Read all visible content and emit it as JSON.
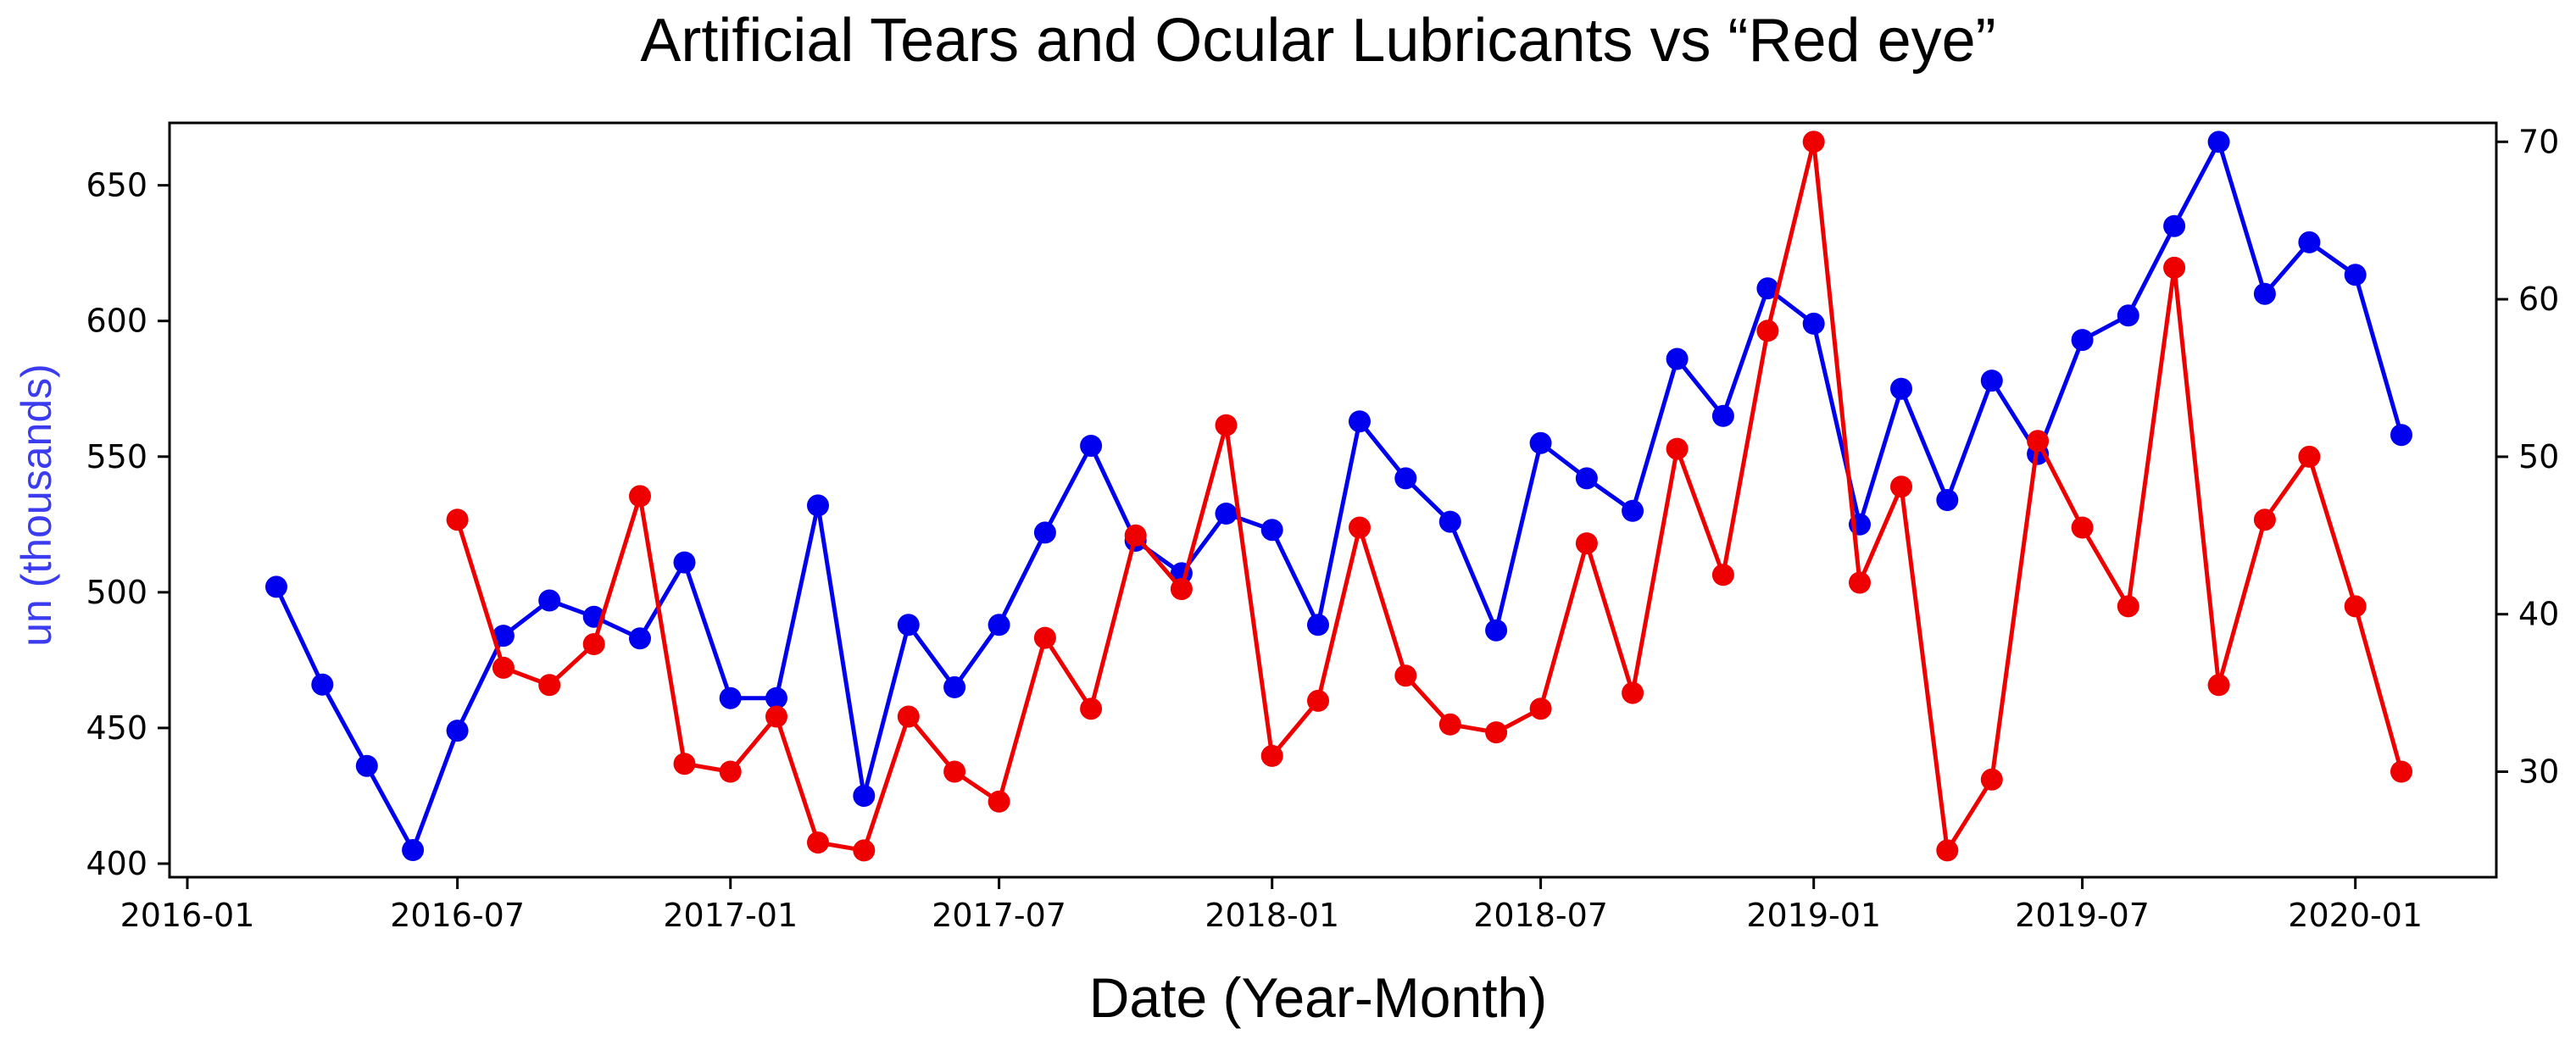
{
  "chart_data": {
    "type": "line",
    "title": "Artificial Tears and Ocular Lubricants vs “Red eye”",
    "xlabel": "Date (Year-Month)",
    "ylabel_left": "un (thousands)",
    "ylabel_right": "",
    "x_range": [
      "2015-12-20",
      "2020-04-05"
    ],
    "y_left_range": [
      395,
      673
    ],
    "y_right_range": [
      23.3,
      71.2
    ],
    "x_ticks": [
      {
        "date": "2016-01-01",
        "label": "2016-01"
      },
      {
        "date": "2016-07-01",
        "label": "2016-07"
      },
      {
        "date": "2017-01-01",
        "label": "2017-01"
      },
      {
        "date": "2017-07-01",
        "label": "2017-07"
      },
      {
        "date": "2018-01-01",
        "label": "2018-01"
      },
      {
        "date": "2018-07-01",
        "label": "2018-07"
      },
      {
        "date": "2019-01-01",
        "label": "2019-01"
      },
      {
        "date": "2019-07-01",
        "label": "2019-07"
      },
      {
        "date": "2020-01-01",
        "label": "2020-01"
      }
    ],
    "y_left_ticks": [
      {
        "value": 400,
        "label": "400"
      },
      {
        "value": 450,
        "label": "450"
      },
      {
        "value": 500,
        "label": "500"
      },
      {
        "value": 550,
        "label": "550"
      },
      {
        "value": 600,
        "label": "600"
      },
      {
        "value": 650,
        "label": "650"
      }
    ],
    "y_right_ticks": [
      {
        "value": 30,
        "label": "30"
      },
      {
        "value": 40,
        "label": "40"
      },
      {
        "value": 50,
        "label": "50"
      },
      {
        "value": 60,
        "label": "60"
      },
      {
        "value": 70,
        "label": "70"
      }
    ],
    "grid": false,
    "legend": "none",
    "series": [
      {
        "axis": "left",
        "color": "#0000ee",
        "points": [
          [
            "2016-03-01",
            502
          ],
          [
            "2016-04-01",
            466
          ],
          [
            "2016-05-01",
            436
          ],
          [
            "2016-06-01",
            405
          ],
          [
            "2016-07-01",
            449
          ],
          [
            "2016-08-01",
            484
          ],
          [
            "2016-09-01",
            497
          ],
          [
            "2016-10-01",
            491
          ],
          [
            "2016-11-01",
            483
          ],
          [
            "2016-12-01",
            511
          ],
          [
            "2017-01-01",
            461
          ],
          [
            "2017-02-01",
            461
          ],
          [
            "2017-03-01",
            532
          ],
          [
            "2017-04-01",
            425
          ],
          [
            "2017-05-01",
            488
          ],
          [
            "2017-06-01",
            465
          ],
          [
            "2017-07-01",
            488
          ],
          [
            "2017-08-01",
            522
          ],
          [
            "2017-09-01",
            554
          ],
          [
            "2017-10-01",
            519
          ],
          [
            "2017-11-01",
            507
          ],
          [
            "2017-12-01",
            529
          ],
          [
            "2018-01-01",
            523
          ],
          [
            "2018-02-01",
            488
          ],
          [
            "2018-03-01",
            563
          ],
          [
            "2018-04-01",
            542
          ],
          [
            "2018-05-01",
            526
          ],
          [
            "2018-06-01",
            486
          ],
          [
            "2018-07-01",
            555
          ],
          [
            "2018-08-01",
            542
          ],
          [
            "2018-09-01",
            530
          ],
          [
            "2018-10-01",
            586
          ],
          [
            "2018-11-01",
            565
          ],
          [
            "2018-12-01",
            612
          ],
          [
            "2019-01-01",
            599
          ],
          [
            "2019-02-01",
            525
          ],
          [
            "2019-03-01",
            575
          ],
          [
            "2019-04-01",
            534
          ],
          [
            "2019-05-01",
            578
          ],
          [
            "2019-06-01",
            551
          ],
          [
            "2019-07-01",
            593
          ],
          [
            "2019-08-01",
            602
          ],
          [
            "2019-09-01",
            635
          ],
          [
            "2019-10-01",
            666
          ],
          [
            "2019-11-01",
            610
          ],
          [
            "2019-12-01",
            629
          ],
          [
            "2020-01-01",
            617
          ],
          [
            "2020-02-01",
            558
          ]
        ]
      },
      {
        "axis": "right",
        "color": "#ee0000",
        "points": [
          [
            "2016-07-01",
            46
          ],
          [
            "2016-08-01",
            36.6
          ],
          [
            "2016-09-01",
            35.5
          ],
          [
            "2016-10-01",
            38.1
          ],
          [
            "2016-11-01",
            47.5
          ],
          [
            "2016-12-01",
            30.5
          ],
          [
            "2017-01-01",
            30.0
          ],
          [
            "2017-02-01",
            33.5
          ],
          [
            "2017-03-01",
            25.5
          ],
          [
            "2017-04-01",
            25.0
          ],
          [
            "2017-05-01",
            33.5
          ],
          [
            "2017-06-01",
            30.0
          ],
          [
            "2017-07-01",
            28.1
          ],
          [
            "2017-08-01",
            38.5
          ],
          [
            "2017-09-01",
            34.0
          ],
          [
            "2017-10-01",
            45.0
          ],
          [
            "2017-11-01",
            41.6
          ],
          [
            "2017-12-01",
            52.0
          ],
          [
            "2018-01-01",
            31.0
          ],
          [
            "2018-02-01",
            34.5
          ],
          [
            "2018-03-01",
            45.5
          ],
          [
            "2018-04-01",
            36.1
          ],
          [
            "2018-05-01",
            33.0
          ],
          [
            "2018-06-01",
            32.5
          ],
          [
            "2018-07-01",
            34.0
          ],
          [
            "2018-08-01",
            44.5
          ],
          [
            "2018-09-01",
            35.0
          ],
          [
            "2018-10-01",
            50.5
          ],
          [
            "2018-11-01",
            42.5
          ],
          [
            "2018-12-01",
            58.0
          ],
          [
            "2019-01-01",
            70.0
          ],
          [
            "2019-02-01",
            42.0
          ],
          [
            "2019-03-01",
            48.1
          ],
          [
            "2019-04-01",
            25.0
          ],
          [
            "2019-05-01",
            29.5
          ],
          [
            "2019-06-01",
            51.0
          ],
          [
            "2019-07-01",
            45.5
          ],
          [
            "2019-08-01",
            40.5
          ],
          [
            "2019-09-01",
            62.0
          ],
          [
            "2019-10-01",
            35.5
          ],
          [
            "2019-11-01",
            46.0
          ],
          [
            "2019-12-01",
            50.0
          ],
          [
            "2020-01-01",
            40.5
          ],
          [
            "2020-02-01",
            30.0
          ]
        ]
      }
    ]
  }
}
